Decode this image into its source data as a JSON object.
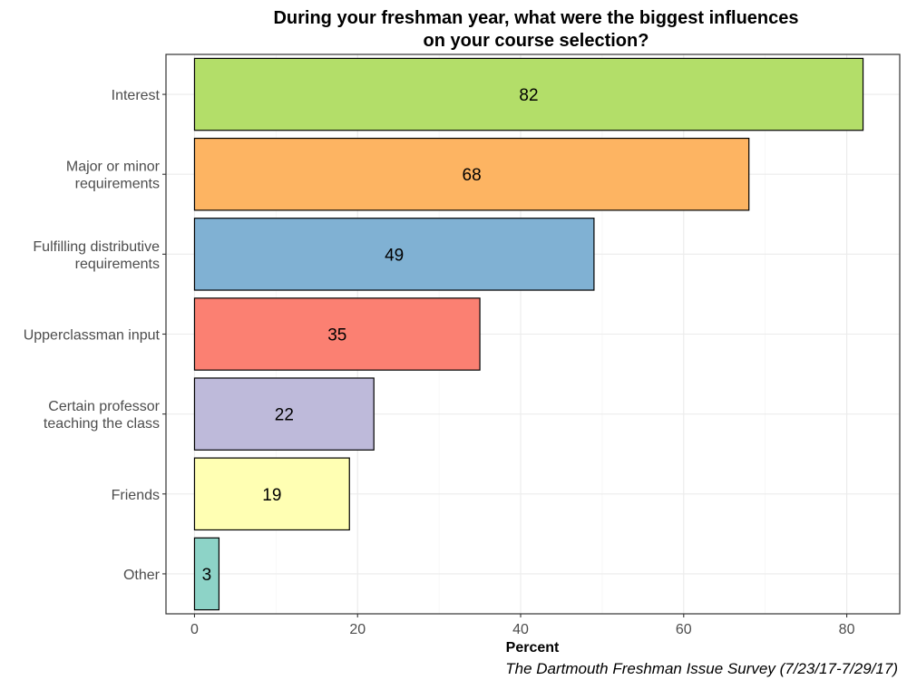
{
  "chart_data": {
    "type": "bar",
    "orientation": "horizontal",
    "title": [
      "During your freshman year, what were the biggest influences",
      "on your course selection?"
    ],
    "xlabel": "Percent",
    "ylabel": "",
    "caption": "The Dartmouth Freshman Issue Survey (7/23/17-7/29/17)",
    "xlim": [
      -3.5,
      86.5
    ],
    "xticks": [
      0,
      20,
      40,
      60,
      80
    ],
    "grid": true,
    "categories": [
      [
        "Interest"
      ],
      [
        "Major or minor",
        "requirements"
      ],
      [
        "Fulfilling distributive",
        "requirements"
      ],
      [
        "Upperclassman input"
      ],
      [
        "Certain professor",
        "teaching the class"
      ],
      [
        "Friends"
      ],
      [
        "Other"
      ]
    ],
    "values": [
      82,
      68,
      49,
      35,
      22,
      19,
      3
    ],
    "colors": [
      "#b3de69",
      "#fdb462",
      "#80b1d3",
      "#fb8072",
      "#bebada",
      "#ffffb3",
      "#8dd3c7"
    ]
  }
}
